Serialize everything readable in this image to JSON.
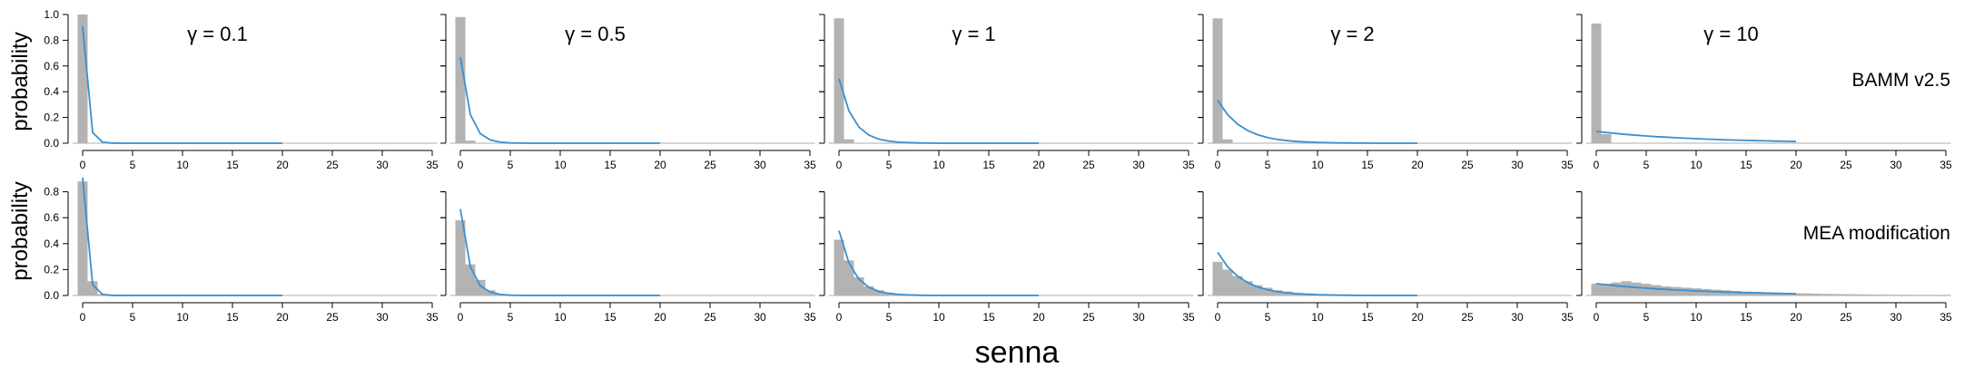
{
  "figure": {
    "xlabel": "senna",
    "ylabel": "probability",
    "row_labels": [
      "BAMM v2.5",
      "MEA modification"
    ],
    "panel_titles": [
      "γ = 0.1",
      "γ = 0.5",
      "γ = 1",
      "γ = 2",
      "γ = 10"
    ],
    "colors": {
      "bar": "#b3b3b3",
      "line": "#3a8fd0",
      "axis": "#000000",
      "baseline": "#c8c8c8"
    }
  },
  "chart_data": [
    {
      "type": "bar",
      "row": 0,
      "col": 0,
      "title": "γ = 0.1",
      "xlim": [
        0,
        35
      ],
      "ylim": [
        0,
        1
      ],
      "x_ticks": [
        0,
        5,
        10,
        15,
        20,
        25,
        30,
        35
      ],
      "y_ticks": [
        0,
        0.2,
        0.4,
        0.6,
        0.8,
        1
      ],
      "y_tick_labels": [
        "0.0",
        "0.2",
        "0.4",
        "0.6",
        "0.8",
        "1.0"
      ],
      "series": [
        {
          "type": "bar",
          "x": [
            0,
            1
          ],
          "values": [
            1.0,
            0.0
          ]
        },
        {
          "type": "line",
          "x": [
            0,
            1,
            2,
            3,
            4,
            5,
            6,
            7,
            8,
            9,
            10,
            11,
            12,
            13,
            14,
            15,
            16,
            17,
            18,
            19,
            20
          ],
          "values": [
            0.909,
            0.083,
            0.0075,
            0.0007,
            0,
            0,
            0,
            0,
            0,
            0,
            0,
            0,
            0,
            0,
            0,
            0,
            0,
            0,
            0,
            0,
            0
          ]
        }
      ]
    },
    {
      "type": "bar",
      "row": 0,
      "col": 1,
      "title": "γ = 0.5",
      "xlim": [
        0,
        35
      ],
      "ylim": [
        0,
        1
      ],
      "x_ticks": [
        0,
        5,
        10,
        15,
        20,
        25,
        30,
        35
      ],
      "y_ticks": [
        0,
        0.2,
        0.4,
        0.6,
        0.8,
        1
      ],
      "y_tick_labels": [
        "0.0",
        "0.2",
        "0.4",
        "0.6",
        "0.8",
        "1.0"
      ],
      "series": [
        {
          "type": "bar",
          "x": [
            0,
            1
          ],
          "values": [
            0.98,
            0.02
          ]
        },
        {
          "type": "line",
          "x": [
            0,
            1,
            2,
            3,
            4,
            5,
            6,
            7,
            8,
            9,
            10,
            11,
            12,
            13,
            14,
            15,
            16,
            17,
            18,
            19,
            20
          ],
          "values": [
            0.667,
            0.222,
            0.074,
            0.025,
            0.008,
            0.003,
            0.001,
            0,
            0,
            0,
            0,
            0,
            0,
            0,
            0,
            0,
            0,
            0,
            0,
            0,
            0
          ]
        }
      ]
    },
    {
      "type": "bar",
      "row": 0,
      "col": 2,
      "title": "γ = 1",
      "xlim": [
        0,
        35
      ],
      "ylim": [
        0,
        1
      ],
      "x_ticks": [
        0,
        5,
        10,
        15,
        20,
        25,
        30,
        35
      ],
      "y_ticks": [
        0,
        0.2,
        0.4,
        0.6,
        0.8,
        1
      ],
      "y_tick_labels": [
        "0.0",
        "0.2",
        "0.4",
        "0.6",
        "0.8",
        "1.0"
      ],
      "series": [
        {
          "type": "bar",
          "x": [
            0,
            1
          ],
          "values": [
            0.97,
            0.03
          ]
        },
        {
          "type": "line",
          "x": [
            0,
            1,
            2,
            3,
            4,
            5,
            6,
            7,
            8,
            9,
            10,
            11,
            12,
            13,
            14,
            15,
            16,
            17,
            18,
            19,
            20
          ],
          "values": [
            0.5,
            0.25,
            0.125,
            0.0625,
            0.031,
            0.016,
            0.008,
            0.004,
            0.002,
            0.001,
            0,
            0,
            0,
            0,
            0,
            0,
            0,
            0,
            0,
            0,
            0
          ]
        }
      ]
    },
    {
      "type": "bar",
      "row": 0,
      "col": 3,
      "title": "γ = 2",
      "xlim": [
        0,
        35
      ],
      "ylim": [
        0,
        1
      ],
      "x_ticks": [
        0,
        5,
        10,
        15,
        20,
        25,
        30,
        35
      ],
      "y_ticks": [
        0,
        0.2,
        0.4,
        0.6,
        0.8,
        1
      ],
      "y_tick_labels": [
        "0.0",
        "0.2",
        "0.4",
        "0.6",
        "0.8",
        "1.0"
      ],
      "series": [
        {
          "type": "bar",
          "x": [
            0,
            1
          ],
          "values": [
            0.97,
            0.03
          ]
        },
        {
          "type": "line",
          "x": [
            0,
            1,
            2,
            3,
            4,
            5,
            6,
            7,
            8,
            9,
            10,
            11,
            12,
            13,
            14,
            15,
            16,
            17,
            18,
            19,
            20
          ],
          "values": [
            0.333,
            0.222,
            0.148,
            0.099,
            0.066,
            0.044,
            0.029,
            0.02,
            0.013,
            0.009,
            0.006,
            0.004,
            0.003,
            0.002,
            0.001,
            0.001,
            0,
            0,
            0,
            0,
            0
          ]
        }
      ]
    },
    {
      "type": "bar",
      "row": 0,
      "col": 4,
      "title": "γ = 10",
      "xlim": [
        0,
        35
      ],
      "ylim": [
        0,
        1
      ],
      "x_ticks": [
        0,
        5,
        10,
        15,
        20,
        25,
        30,
        35
      ],
      "y_ticks": [
        0,
        0.2,
        0.4,
        0.6,
        0.8,
        1
      ],
      "y_tick_labels": [
        "0.0",
        "0.2",
        "0.4",
        "0.6",
        "0.8",
        "1.0"
      ],
      "series": [
        {
          "type": "bar",
          "x": [
            0,
            1
          ],
          "values": [
            0.93,
            0.07
          ]
        },
        {
          "type": "line",
          "x": [
            0,
            1,
            2,
            3,
            4,
            5,
            6,
            7,
            8,
            9,
            10,
            11,
            12,
            13,
            14,
            15,
            16,
            17,
            18,
            19,
            20
          ],
          "values": [
            0.091,
            0.083,
            0.075,
            0.068,
            0.062,
            0.056,
            0.051,
            0.047,
            0.042,
            0.039,
            0.035,
            0.032,
            0.029,
            0.026,
            0.024,
            0.022,
            0.02,
            0.018,
            0.016,
            0.015,
            0.013
          ]
        }
      ]
    },
    {
      "type": "bar",
      "row": 1,
      "col": 0,
      "title": "",
      "xlim": [
        0,
        35
      ],
      "ylim": [
        0,
        1
      ],
      "x_ticks": [
        0,
        5,
        10,
        15,
        20,
        25,
        30,
        35
      ],
      "y_ticks": [
        0,
        0.2,
        0.4,
        0.6,
        0.8
      ],
      "y_tick_labels": [
        "0.0",
        "0.2",
        "0.4",
        "0.6",
        "0.8"
      ],
      "series": [
        {
          "type": "bar",
          "x": [
            0,
            1,
            2
          ],
          "values": [
            0.88,
            0.11,
            0.01
          ]
        },
        {
          "type": "line",
          "x": [
            0,
            1,
            2,
            3,
            4,
            5,
            6,
            7,
            8,
            9,
            10,
            11,
            12,
            13,
            14,
            15,
            16,
            17,
            18,
            19,
            20
          ],
          "values": [
            0.909,
            0.083,
            0.0075,
            0.0007,
            0,
            0,
            0,
            0,
            0,
            0,
            0,
            0,
            0,
            0,
            0,
            0,
            0,
            0,
            0,
            0,
            0
          ]
        }
      ]
    },
    {
      "type": "bar",
      "row": 1,
      "col": 1,
      "title": "",
      "xlim": [
        0,
        35
      ],
      "ylim": [
        0,
        1
      ],
      "x_ticks": [
        0,
        5,
        10,
        15,
        20,
        25,
        30,
        35
      ],
      "y_ticks": [
        0,
        0.2,
        0.4,
        0.6,
        0.8
      ],
      "y_tick_labels": [
        "0.0",
        "0.2",
        "0.4",
        "0.6",
        "0.8"
      ],
      "series": [
        {
          "type": "bar",
          "x": [
            0,
            1,
            2,
            3,
            4
          ],
          "values": [
            0.58,
            0.24,
            0.12,
            0.04,
            0.01
          ]
        },
        {
          "type": "line",
          "x": [
            0,
            1,
            2,
            3,
            4,
            5,
            6,
            7,
            8,
            9,
            10,
            11,
            12,
            13,
            14,
            15,
            16,
            17,
            18,
            19,
            20
          ],
          "values": [
            0.667,
            0.222,
            0.074,
            0.025,
            0.008,
            0.003,
            0.001,
            0,
            0,
            0,
            0,
            0,
            0,
            0,
            0,
            0,
            0,
            0,
            0,
            0,
            0
          ]
        }
      ]
    },
    {
      "type": "bar",
      "row": 1,
      "col": 2,
      "title": "",
      "xlim": [
        0,
        35
      ],
      "ylim": [
        0,
        1
      ],
      "x_ticks": [
        0,
        5,
        10,
        15,
        20,
        25,
        30,
        35
      ],
      "y_ticks": [
        0,
        0.2,
        0.4,
        0.6,
        0.8
      ],
      "y_tick_labels": [
        "0.0",
        "0.2",
        "0.4",
        "0.6",
        "0.8"
      ],
      "series": [
        {
          "type": "bar",
          "x": [
            0,
            1,
            2,
            3,
            4,
            5,
            6
          ],
          "values": [
            0.43,
            0.27,
            0.14,
            0.07,
            0.04,
            0.02,
            0.01
          ]
        },
        {
          "type": "line",
          "x": [
            0,
            1,
            2,
            3,
            4,
            5,
            6,
            7,
            8,
            9,
            10,
            11,
            12,
            13,
            14,
            15,
            16,
            17,
            18,
            19,
            20
          ],
          "values": [
            0.5,
            0.25,
            0.125,
            0.0625,
            0.031,
            0.016,
            0.008,
            0.004,
            0.002,
            0.001,
            0,
            0,
            0,
            0,
            0,
            0,
            0,
            0,
            0,
            0,
            0
          ]
        }
      ]
    },
    {
      "type": "bar",
      "row": 1,
      "col": 3,
      "title": "",
      "xlim": [
        0,
        35
      ],
      "ylim": [
        0,
        1
      ],
      "x_ticks": [
        0,
        5,
        10,
        15,
        20,
        25,
        30,
        35
      ],
      "y_ticks": [
        0,
        0.2,
        0.4,
        0.6,
        0.8
      ],
      "y_tick_labels": [
        "0.0",
        "0.2",
        "0.4",
        "0.6",
        "0.8"
      ],
      "series": [
        {
          "type": "bar",
          "x": [
            0,
            1,
            2,
            3,
            4,
            5,
            6,
            7,
            8,
            9,
            10,
            11
          ],
          "values": [
            0.26,
            0.2,
            0.15,
            0.11,
            0.08,
            0.06,
            0.04,
            0.03,
            0.02,
            0.015,
            0.01,
            0.005
          ]
        },
        {
          "type": "line",
          "x": [
            0,
            1,
            2,
            3,
            4,
            5,
            6,
            7,
            8,
            9,
            10,
            11,
            12,
            13,
            14,
            15,
            16,
            17,
            18,
            19,
            20
          ],
          "values": [
            0.333,
            0.222,
            0.148,
            0.099,
            0.066,
            0.044,
            0.029,
            0.02,
            0.013,
            0.009,
            0.006,
            0.004,
            0.003,
            0.002,
            0.001,
            0.001,
            0,
            0,
            0,
            0,
            0
          ]
        }
      ]
    },
    {
      "type": "bar",
      "row": 1,
      "col": 4,
      "title": "",
      "xlim": [
        0,
        35
      ],
      "ylim": [
        0,
        1
      ],
      "x_ticks": [
        0,
        5,
        10,
        15,
        20,
        25,
        30,
        35
      ],
      "y_ticks": [
        0,
        0.2,
        0.4,
        0.6,
        0.8
      ],
      "y_tick_labels": [
        "0.0",
        "0.2",
        "0.4",
        "0.6",
        "0.8"
      ],
      "series": [
        {
          "type": "bar",
          "x": [
            0,
            1,
            2,
            3,
            4,
            5,
            6,
            7,
            8,
            9,
            10,
            11,
            12,
            13,
            14,
            15,
            16,
            17,
            18,
            19,
            20,
            21,
            22,
            23,
            24,
            25,
            26,
            27,
            28,
            29,
            30,
            31,
            32,
            33,
            34,
            35
          ],
          "values": [
            0.09,
            0.09,
            0.1,
            0.11,
            0.1,
            0.09,
            0.08,
            0.07,
            0.065,
            0.06,
            0.055,
            0.05,
            0.045,
            0.04,
            0.035,
            0.03,
            0.028,
            0.025,
            0.022,
            0.02,
            0.018,
            0.016,
            0.014,
            0.012,
            0.011,
            0.01,
            0.009,
            0.008,
            0.007,
            0.006,
            0.005,
            0.005,
            0.004,
            0.004,
            0.003,
            0.003
          ]
        },
        {
          "type": "line",
          "x": [
            0,
            1,
            2,
            3,
            4,
            5,
            6,
            7,
            8,
            9,
            10,
            11,
            12,
            13,
            14,
            15,
            16,
            17,
            18,
            19,
            20
          ],
          "values": [
            0.091,
            0.083,
            0.075,
            0.068,
            0.062,
            0.056,
            0.051,
            0.047,
            0.042,
            0.039,
            0.035,
            0.032,
            0.029,
            0.026,
            0.024,
            0.022,
            0.02,
            0.018,
            0.016,
            0.015,
            0.013
          ]
        }
      ]
    }
  ]
}
